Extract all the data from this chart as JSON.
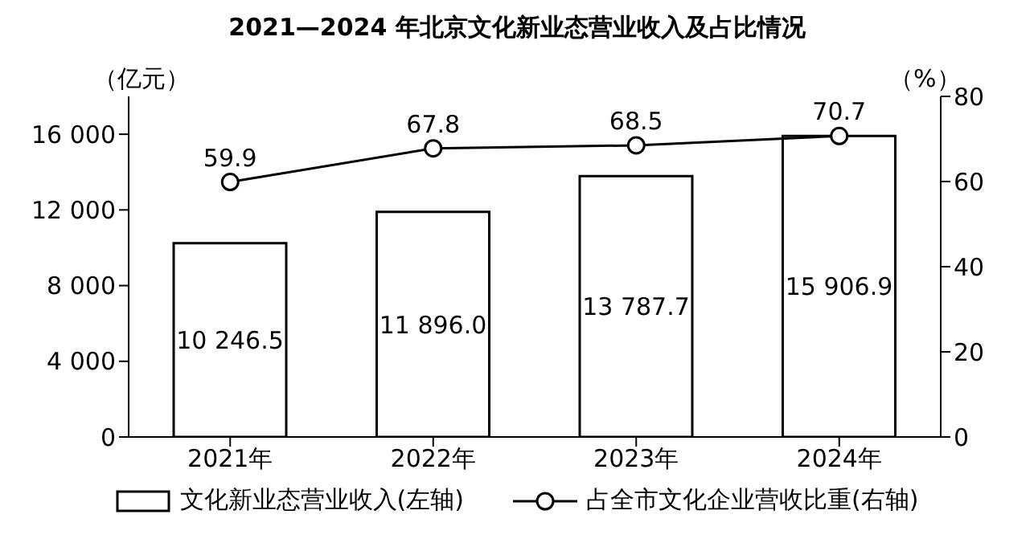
{
  "chart_data": {
    "type": "bar",
    "title": "2021—2024 年北京文化新业态营业收入及占比情况",
    "ylabel": "（亿元）",
    "y2label": "（%）",
    "categories": [
      "2021年",
      "2022年",
      "2023年",
      "2024年"
    ],
    "series": [
      {
        "name": "文化新业态营业收入(左轴)",
        "color": "#ffffff",
        "values": [
          10246.5,
          11896.0,
          13787.7,
          15906.9
        ],
        "value_labels": [
          "10 246.5",
          "11 896.0",
          "13 787.7",
          "15 906.9"
        ]
      },
      {
        "name": "占全市文化企业营收比重(右轴)",
        "type": "line",
        "axis": "y2",
        "color": "#000000",
        "values": [
          59.9,
          67.8,
          68.5,
          70.7
        ],
        "value_labels": [
          "59.9",
          "67.8",
          "68.5",
          "70.7"
        ]
      }
    ],
    "ylim": [
      0,
      18000
    ],
    "yticks": [
      0,
      {
        "value": 4000,
        "label": "4 000"
      },
      {
        "value": 8000,
        "label": "8 000"
      },
      {
        "value": 12000,
        "label": "12 000"
      },
      {
        "value": 16000,
        "label": "16 000"
      }
    ],
    "y2lim": [
      0,
      80
    ],
    "y2ticks": [
      0,
      20,
      40,
      60,
      80
    ],
    "grid": false,
    "legend": "bottom",
    "marker": "circle",
    "line_style": "solid"
  }
}
